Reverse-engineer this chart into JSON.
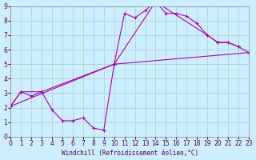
{
  "xlabel": "Windchill (Refroidissement éolien,°C)",
  "ylabel": "",
  "xlim": [
    0,
    23
  ],
  "ylim": [
    0,
    9
  ],
  "xticks": [
    0,
    1,
    2,
    3,
    4,
    5,
    6,
    7,
    8,
    9,
    10,
    11,
    12,
    13,
    14,
    15,
    16,
    17,
    18,
    19,
    20,
    21,
    22,
    23
  ],
  "yticks": [
    0,
    1,
    2,
    3,
    4,
    5,
    6,
    7,
    8,
    9
  ],
  "bg_color": "#cceeff",
  "line_color": "#aa00aa",
  "grid_color": "#aacccc",
  "line1_x": [
    0,
    1,
    2,
    3,
    4,
    5,
    6,
    7,
    8,
    9,
    10,
    11,
    12,
    13,
    14,
    15,
    16,
    17,
    18,
    19,
    20,
    21,
    22
  ],
  "line1_y": [
    2.1,
    3.1,
    2.8,
    3.1,
    1.85,
    1.1,
    1.1,
    1.3,
    0.6,
    0.45,
    5.0,
    8.5,
    8.2,
    8.7,
    9.3,
    8.5,
    8.5,
    8.3,
    7.8,
    7.0,
    6.5,
    6.5,
    6.2
  ],
  "line2_x": [
    0,
    1,
    3,
    10,
    14,
    19,
    20,
    21,
    22,
    23
  ],
  "line2_y": [
    2.1,
    3.1,
    3.1,
    5.0,
    9.3,
    7.0,
    6.5,
    6.5,
    6.2,
    5.8
  ],
  "line3_x": [
    0,
    10,
    23
  ],
  "line3_y": [
    2.1,
    5.0,
    5.8
  ]
}
